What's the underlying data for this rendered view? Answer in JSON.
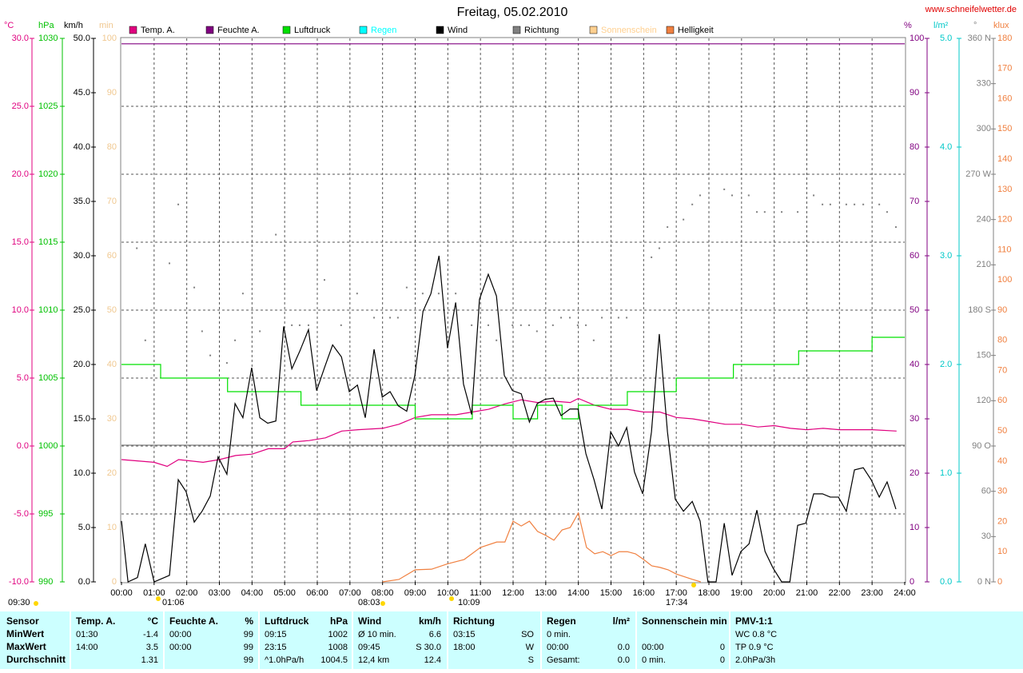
{
  "chart_data": {
    "type": "line",
    "title": "Freitag, 05.02.2010",
    "source": "www.schneifelwetter.de",
    "xlim": [
      0,
      24
    ],
    "xticks": [
      {
        "value": 0,
        "label": "00:00"
      },
      {
        "value": 1,
        "label": "01:00"
      },
      {
        "value": 2,
        "label": "02:00"
      },
      {
        "value": 3,
        "label": "03:00"
      },
      {
        "value": 4,
        "label": "04:00"
      },
      {
        "value": 5,
        "label": "05:00"
      },
      {
        "value": 6,
        "label": "06:00"
      },
      {
        "value": 7,
        "label": "07:00"
      },
      {
        "value": 8,
        "label": "08:00"
      },
      {
        "value": 9,
        "label": "09:00"
      },
      {
        "value": 10,
        "label": "10:00"
      },
      {
        "value": 11,
        "label": "11:00"
      },
      {
        "value": 12,
        "label": "12:00"
      },
      {
        "value": 13,
        "label": "13:00"
      },
      {
        "value": 14,
        "label": "14:00"
      },
      {
        "value": 15,
        "label": "15:00"
      },
      {
        "value": 16,
        "label": "16:00"
      },
      {
        "value": 17,
        "label": "17:00"
      },
      {
        "value": 18,
        "label": "18:00"
      },
      {
        "value": 19,
        "label": "19:00"
      },
      {
        "value": 20,
        "label": "20:00"
      },
      {
        "value": 21,
        "label": "21:00"
      },
      {
        "value": 22,
        "label": "22:00"
      },
      {
        "value": 23,
        "label": "23:00"
      },
      {
        "value": 24,
        "label": "24:00"
      }
    ],
    "grid": true,
    "axes": [
      {
        "unit": "°C",
        "color": "#e0007f",
        "lim": [
          -10,
          30
        ],
        "ticks": [
          {
            "value": -10,
            "label": "-10.0"
          },
          {
            "value": -5,
            "label": "-5.0"
          },
          {
            "value": 0,
            "label": "0.0"
          },
          {
            "value": 5,
            "label": "5.0"
          },
          {
            "value": 10,
            "label": "10.0"
          },
          {
            "value": 15,
            "label": "15.0"
          },
          {
            "value": 20,
            "label": "20.0"
          },
          {
            "value": 25,
            "label": "25.0"
          },
          {
            "value": 30,
            "label": "30.0"
          }
        ]
      },
      {
        "unit": "hPa",
        "color": "#00c000",
        "lim": [
          990,
          1030
        ],
        "ticks": [
          990,
          995,
          1000,
          1005,
          1010,
          1015,
          1020,
          1025,
          1030
        ]
      },
      {
        "unit": "km/h",
        "color": "#000000",
        "lim": [
          0,
          50
        ],
        "ticks": [
          {
            "value": 0,
            "label": "0.0"
          },
          {
            "value": 5,
            "label": "5.0"
          },
          {
            "value": 10,
            "label": "10.0"
          },
          {
            "value": 15,
            "label": "15.0"
          },
          {
            "value": 20,
            "label": "20.0"
          },
          {
            "value": 25,
            "label": "25.0"
          },
          {
            "value": 30,
            "label": "30.0"
          },
          {
            "value": 35,
            "label": "35.0"
          },
          {
            "value": 40,
            "label": "40.0"
          },
          {
            "value": 45,
            "label": "45.0"
          },
          {
            "value": 50,
            "label": "50.0"
          }
        ]
      },
      {
        "unit": "min",
        "color": "#f0c890",
        "lim": [
          0,
          100
        ],
        "ticks": [
          0,
          10,
          20,
          30,
          40,
          50,
          60,
          70,
          80,
          90,
          100
        ]
      },
      {
        "unit": "%",
        "color": "#800080",
        "lim": [
          0,
          100
        ],
        "ticks": [
          0,
          10,
          20,
          30,
          40,
          50,
          60,
          70,
          80,
          90,
          100
        ]
      },
      {
        "unit": "l/m²",
        "color": "#00c8c8",
        "lim": [
          0,
          5
        ],
        "ticks": [
          {
            "value": 0,
            "label": "0.0"
          },
          {
            "value": 1,
            "label": "1.0"
          },
          {
            "value": 2,
            "label": "2.0"
          },
          {
            "value": 3,
            "label": "3.0"
          },
          {
            "value": 4,
            "label": "4.0"
          },
          {
            "value": 5,
            "label": "5.0"
          }
        ]
      },
      {
        "unit": "°",
        "color": "#808080",
        "lim": [
          0,
          360
        ],
        "ticks": [
          {
            "value": 0,
            "label": "0 N"
          },
          30,
          60,
          {
            "value": 90,
            "label": "90 O"
          },
          120,
          150,
          {
            "value": 180,
            "label": "180 S"
          },
          210,
          240,
          {
            "value": 270,
            "label": "270 W"
          },
          300,
          330,
          {
            "value": 360,
            "label": "360 N"
          }
        ]
      },
      {
        "unit": "klux",
        "color": "#f08040",
        "lim": [
          0,
          180
        ],
        "ticks": [
          0,
          10,
          20,
          30,
          40,
          50,
          60,
          70,
          80,
          90,
          100,
          110,
          120,
          130,
          140,
          150,
          160,
          170,
          180
        ]
      }
    ],
    "series": [
      {
        "name": "Temp. A.",
        "color": "#e0007f",
        "axis": 0,
        "style": "line",
        "x": [
          0,
          1,
          1.4,
          1.75,
          2.5,
          3,
          3.5,
          4,
          4.5,
          5,
          5.25,
          5.75,
          6.25,
          6.75,
          7.25,
          8,
          8.5,
          9,
          9.5,
          10.25,
          10.75,
          11.25,
          11.75,
          12.25,
          12.75,
          13.25,
          13.75,
          14,
          14.5,
          15,
          15.5,
          16,
          16.5,
          17,
          17.5,
          18,
          18.5,
          19,
          19.5,
          20,
          20.5,
          21,
          21.5,
          22,
          23,
          23.75
        ],
        "values": [
          -1.0,
          -1.2,
          -1.5,
          -1.0,
          -1.2,
          -1.0,
          -0.7,
          -0.6,
          -0.2,
          -0.2,
          0.3,
          0.4,
          0.6,
          1.1,
          1.2,
          1.3,
          1.6,
          2.1,
          2.3,
          2.3,
          2.5,
          2.7,
          3.1,
          3.4,
          3.2,
          3.3,
          3.2,
          3.5,
          3.0,
          2.7,
          2.7,
          2.5,
          2.5,
          2.1,
          2.0,
          1.8,
          1.6,
          1.6,
          1.4,
          1.5,
          1.3,
          1.2,
          1.3,
          1.2,
          1.2,
          1.1
        ]
      },
      {
        "name": "Feuchte A.",
        "color": "#800080",
        "axis": 4,
        "style": "line",
        "x": [
          0,
          24
        ],
        "values": [
          99,
          99
        ]
      },
      {
        "name": "Luftdruck",
        "color": "#00e000",
        "axis": 1,
        "style": "step",
        "x": [
          0,
          1.2,
          3.25,
          5.5,
          9,
          10.75,
          12,
          12.75,
          13.5,
          14,
          15.5,
          17,
          18.75,
          20.75,
          23,
          24
        ],
        "values": [
          1006,
          1005,
          1004,
          1003,
          1002,
          1003,
          1002,
          1003,
          1002,
          1003,
          1004,
          1005,
          1006,
          1007,
          1008,
          1008
        ]
      },
      {
        "name": "Regen",
        "color": "#00ffff"
      },
      {
        "name": "Wind",
        "color": "#000000",
        "axis": 2,
        "style": "line",
        "x": [
          0,
          0.2,
          0.49,
          0.73,
          1.0,
          1.47,
          1.74,
          1.98,
          2.23,
          2.47,
          2.72,
          2.96,
          3.23,
          3.48,
          3.72,
          3.99,
          4.24,
          4.48,
          4.73,
          4.97,
          5.22,
          5.46,
          5.73,
          5.98,
          6.22,
          6.47,
          6.74,
          6.98,
          7.23,
          7.47,
          7.74,
          7.99,
          8.23,
          8.48,
          8.74,
          8.99,
          9.24,
          9.48,
          9.73,
          9.99,
          10.24,
          10.48,
          10.73,
          10.97,
          11.24,
          11.49,
          11.73,
          11.98,
          12.25,
          12.5,
          12.74,
          12.98,
          13.23,
          13.47,
          13.74,
          13.99,
          14.23,
          14.48,
          14.72,
          14.99,
          15.23,
          15.48,
          15.72,
          15.97,
          16.24,
          16.48,
          16.73,
          16.97,
          17.22,
          17.49,
          17.73,
          17.97,
          18.22,
          18.47,
          18.71,
          18.98,
          19.23,
          19.47,
          19.72,
          19.96,
          20.23,
          20.48,
          20.72,
          20.97,
          21.21,
          21.48,
          21.72,
          21.97,
          22.21,
          22.46,
          22.73,
          22.97,
          23.22,
          23.46,
          23.73
        ],
        "values": [
          5.6,
          0,
          0.4,
          3.5,
          0,
          0.6,
          9.4,
          8.3,
          5.5,
          6.5,
          7.9,
          11.5,
          9.9,
          16.4,
          15.1,
          19.7,
          15.1,
          14.6,
          14.8,
          23.5,
          19.6,
          21.2,
          23.2,
          17.6,
          19.7,
          21.8,
          20.7,
          17.5,
          18.1,
          15.1,
          21.4,
          17.0,
          17.5,
          16.2,
          15.7,
          19.0,
          24.9,
          26.5,
          30.0,
          21.5,
          25.7,
          18.2,
          15.4,
          26.0,
          28.3,
          26.3,
          19.0,
          17.6,
          17.3,
          14.7,
          16.4,
          16.8,
          16.9,
          15.3,
          15.9,
          15.9,
          11.8,
          9.4,
          6.7,
          13.8,
          12.5,
          14.2,
          10.1,
          8.1,
          13.8,
          22.8,
          13.8,
          7.6,
          6.5,
          7.4,
          5.6,
          0,
          0,
          5.4,
          0.6,
          2.8,
          3.5,
          6.6,
          2.8,
          1.3,
          0,
          0,
          5.2,
          5.4,
          8.1,
          8.1,
          7.8,
          7.8,
          6.5,
          10.3,
          10.5,
          9.4,
          7.8,
          9.2,
          6.7
        ]
      },
      {
        "name": "Richtung",
        "color": "#808080",
        "axis": 6,
        "style": "dots",
        "x": [
          0.47,
          0.73,
          1.47,
          1.74,
          2.23,
          2.47,
          2.72,
          3.23,
          3.48,
          3.72,
          4.24,
          4.73,
          5.22,
          5.46,
          5.73,
          6.22,
          6.73,
          7.22,
          7.74,
          8.23,
          8.47,
          8.74,
          9.23,
          9.72,
          10.24,
          10.73,
          11.24,
          11.49,
          11.98,
          12.24,
          12.49,
          12.73,
          13.22,
          13.47,
          13.74,
          13.98,
          14.23,
          14.47,
          14.72,
          15.23,
          15.48,
          16.24,
          16.48,
          16.73,
          17.22,
          17.49,
          17.73,
          18.47,
          18.71,
          19.22,
          19.47,
          19.71,
          20.23,
          20.72,
          21.21,
          21.48,
          21.72,
          22.21,
          22.46,
          22.73,
          23.22,
          23.46,
          23.73
        ],
        "values": [
          221,
          160,
          211,
          250,
          195,
          166,
          150,
          145,
          160,
          191,
          166,
          230,
          170,
          170,
          170,
          200,
          170,
          191,
          175,
          175,
          175,
          195,
          191,
          191,
          191,
          170,
          170,
          160,
          170,
          170,
          170,
          166,
          170,
          175,
          175,
          170,
          170,
          160,
          175,
          175,
          175,
          215,
          221,
          235,
          240,
          250,
          256,
          260,
          256,
          256,
          245,
          245,
          245,
          245,
          256,
          250,
          250,
          250,
          250,
          250,
          250,
          245,
          235
        ]
      },
      {
        "name": "Sonnenschein",
        "color": "#ffd090"
      },
      {
        "name": "Helligkeit",
        "color": "#f08040",
        "axis": 7,
        "style": "line",
        "x": [
          8,
          8.5,
          9,
          9.5,
          10,
          10.5,
          11,
          11.5,
          11.75,
          12,
          12.25,
          12.5,
          12.75,
          13,
          13.25,
          13.5,
          13.75,
          14,
          14.25,
          14.5,
          14.75,
          15,
          15.25,
          15.5,
          15.75,
          16,
          16.25,
          16.5,
          16.75,
          17,
          17.5,
          17.75
        ],
        "values": [
          0,
          0.8,
          4,
          4.2,
          6,
          7.4,
          11.4,
          13.2,
          13.2,
          20.1,
          18.5,
          20.1,
          16.7,
          15.4,
          13.8,
          17.2,
          18,
          22.8,
          11.4,
          9.3,
          10,
          8.7,
          10,
          10,
          9.3,
          7.4,
          5.3,
          4.8,
          4,
          2.6,
          0.8,
          0
        ]
      }
    ],
    "annotations": [
      "09:30",
      "01:06",
      "08:03",
      "10:09",
      "17:34"
    ]
  },
  "table": {
    "sections": [
      {
        "header": [
          "Sensor"
        ],
        "rows": [
          [
            "MinWert"
          ],
          [
            "MaxWert"
          ],
          [
            "Durchschnitt"
          ]
        ]
      },
      {
        "header": [
          "Temp. A.",
          "°C"
        ],
        "rows": [
          [
            "01:30",
            "-1.4"
          ],
          [
            "14:00",
            "3.5"
          ],
          [
            null,
            "1.31"
          ]
        ]
      },
      {
        "header": [
          "Feuchte A.",
          "%"
        ],
        "rows": [
          [
            "00:00",
            "99"
          ],
          [
            "00:00",
            "99"
          ],
          [
            null,
            "99"
          ]
        ]
      },
      {
        "header": [
          "Luftdruck",
          "hPa"
        ],
        "rows": [
          [
            "09:15",
            "1002"
          ],
          [
            "23:15",
            "1008"
          ],
          [
            "^1.0hPa/h",
            "1004.5"
          ]
        ]
      },
      {
        "header": [
          "Wind",
          "km/h"
        ],
        "rows": [
          [
            "Ø 10 min.",
            "6.6"
          ],
          [
            "09:45",
            "S 30.0"
          ],
          [
            "12,4 km",
            "12.4"
          ]
        ]
      },
      {
        "header": [
          "Richtung"
        ],
        "rows": [
          [
            "03:15",
            "SO"
          ],
          [
            "18:00",
            "W"
          ],
          [
            null,
            "S"
          ]
        ]
      },
      {
        "header": [
          "Regen",
          "l/m²"
        ],
        "rows": [
          [
            "0 min.",
            null
          ],
          [
            "00:00",
            "0.0"
          ],
          [
            "Gesamt:",
            "0.0"
          ]
        ]
      },
      {
        "header": [
          "Sonnenschein min"
        ],
        "rows": [
          [
            null,
            null
          ],
          [
            "00:00",
            "0"
          ],
          [
            "0 min.",
            "0"
          ]
        ]
      },
      {
        "header": [
          "PMV-1:1"
        ],
        "rows": [
          [
            "WC 0.8 °C"
          ],
          [
            "TP 0.9 °C"
          ],
          [
            "2.0hPa/3h"
          ]
        ]
      }
    ]
  }
}
